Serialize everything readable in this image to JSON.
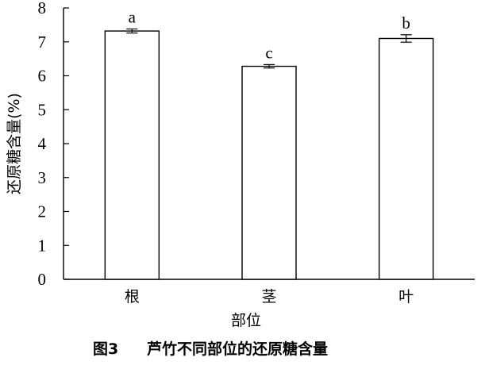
{
  "chart_data": {
    "type": "bar",
    "categories": [
      "根",
      "茎",
      "叶"
    ],
    "values": [
      7.32,
      6.28,
      7.1
    ],
    "errors": [
      0.06,
      0.05,
      0.11
    ],
    "significance": [
      "a",
      "c",
      "b"
    ],
    "xlabel": "部位",
    "ylabel": "还原糖含量(%)",
    "ylim": [
      0,
      8
    ],
    "yticks": [
      "0",
      "1",
      "2",
      "3",
      "4",
      "5",
      "6",
      "7",
      "8"
    ],
    "grid": false,
    "bar_color": "#ffffff",
    "edge_color": "#000000"
  },
  "caption": {
    "label": "图3",
    "text": "芦竹不同部位的还原糖含量"
  }
}
